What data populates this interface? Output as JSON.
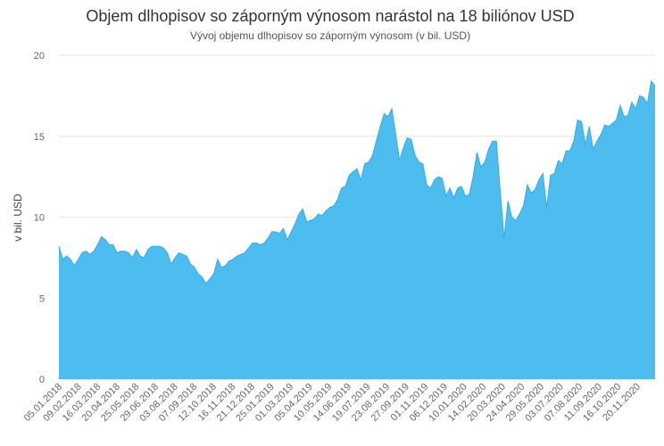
{
  "chart_data": {
    "type": "area",
    "title": "Objem dlhopisov so záporným výnosom narástol na 18 biliónov USD",
    "subtitle": "Vývoj objemu dlhopisov so záporným výnosom (v bil. USD)",
    "ylabel": "v bil. USD",
    "xlabel": "",
    "ylim": [
      0,
      20
    ],
    "yticks": [
      0,
      5,
      10,
      15,
      20
    ],
    "grid": true,
    "legend": "none",
    "color": "#4dbdf0",
    "x_tick_labels": [
      "05.01.2018",
      "09.02.2018",
      "16.03.2018",
      "20.04.2018",
      "25.05.2018",
      "29.06.2018",
      "03.08.2018",
      "07.09.2018",
      "12.10.2018",
      "16.11.2018",
      "21.12.2018",
      "25.01.2019",
      "01.03.2019",
      "05.04.2019",
      "10.05.2019",
      "14.06.2019",
      "19.07.2019",
      "23.08.2019",
      "27.09.2019",
      "01.11.2019",
      "06.12.2019",
      "10.01.2020",
      "14.02.2020",
      "20.03.2020",
      "24.04.2020",
      "29.05.2020",
      "03.07.2020",
      "07.08.2020",
      "11.09.2020",
      "16.10.2020",
      "20.11.2020"
    ],
    "values": [
      8.2,
      7.4,
      7.6,
      7.4,
      7.0,
      7.4,
      7.8,
      7.9,
      7.7,
      7.9,
      8.3,
      8.8,
      8.6,
      8.3,
      8.3,
      7.8,
      7.9,
      7.9,
      7.8,
      7.5,
      8.0,
      7.6,
      7.5,
      8.0,
      8.2,
      8.2,
      8.2,
      8.1,
      7.8,
      7.1,
      7.5,
      7.8,
      7.7,
      7.6,
      7.1,
      6.9,
      6.5,
      6.3,
      5.9,
      6.2,
      6.5,
      7.4,
      6.9,
      7.0,
      7.3,
      7.4,
      7.6,
      7.7,
      7.8,
      8.1,
      8.4,
      8.4,
      8.3,
      8.4,
      8.7,
      9.1,
      9.1,
      9.0,
      9.3,
      8.6,
      9.1,
      9.6,
      10.2,
      10.5,
      9.7,
      9.8,
      9.9,
      10.2,
      10.1,
      10.4,
      10.6,
      10.7,
      11.1,
      11.8,
      11.9,
      12.6,
      12.8,
      13.0,
      12.3,
      13.3,
      13.4,
      13.8,
      14.7,
      15.6,
      16.4,
      16.2,
      16.7,
      15.1,
      13.5,
      14.3,
      14.9,
      14.8,
      13.8,
      13.4,
      13.3,
      12.0,
      11.8,
      12.3,
      12.5,
      12.4,
      11.3,
      11.8,
      11.2,
      11.8,
      11.9,
      11.3,
      11.4,
      12.5,
      14.0,
      13.1,
      13.4,
      14.2,
      14.7,
      14.7,
      11.6,
      8.7,
      11.0,
      10.0,
      9.8,
      10.2,
      10.7,
      12.0,
      11.5,
      11.7,
      12.3,
      12.7,
      10.6,
      12.6,
      12.7,
      13.5,
      13.3,
      14.1,
      14.1,
      14.7,
      16.0,
      15.9,
      14.5,
      15.6,
      14.2,
      14.7,
      15.1,
      15.7,
      15.6,
      15.8,
      16.0,
      16.9,
      16.2,
      16.3,
      17.1,
      16.7,
      17.5,
      17.4,
      17.0,
      18.4,
      18.1
    ]
  }
}
